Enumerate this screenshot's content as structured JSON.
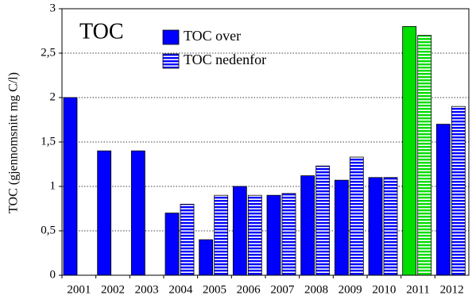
{
  "chart_data": {
    "type": "bar",
    "title": "TOC",
    "y_label": "TOC (gjennomsnitt mg C/l)",
    "categories": [
      "2001",
      "2002",
      "2003",
      "2004",
      "2005",
      "2006",
      "2007",
      "2008",
      "2009",
      "2010",
      "2011",
      "2012"
    ],
    "series": [
      {
        "name": "TOC over",
        "color": "#0000ff",
        "colors": [
          "#0000ff",
          "#0000ff",
          "#0000ff",
          "#0000ff",
          "#0000ff",
          "#0000ff",
          "#0000ff",
          "#0000ff",
          "#0000ff",
          "#0000ff",
          "#00dd00",
          "#0000ff"
        ],
        "pattern": "solid",
        "values": [
          2.0,
          1.4,
          1.4,
          0.7,
          0.4,
          1.0,
          0.9,
          1.12,
          1.07,
          1.1,
          2.8,
          1.7
        ]
      },
      {
        "name": "TOC nedenfor",
        "color": "#0000ff",
        "colors": [
          "#0000ff",
          "#0000ff",
          "#0000ff",
          "#0000ff",
          "#0000ff",
          "#0000ff",
          "#0000ff",
          "#0000ff",
          "#0000ff",
          "#0000ff",
          "#00dd00",
          "#0000ff"
        ],
        "pattern": "stripes",
        "values": [
          null,
          null,
          null,
          0.8,
          0.9,
          0.9,
          0.92,
          1.23,
          1.33,
          1.1,
          2.7,
          1.9
        ]
      }
    ],
    "ylim": [
      0,
      3
    ],
    "yticks": [
      0,
      {
        "value": 0.5,
        "label": "0,5"
      },
      1,
      {
        "value": 1.5,
        "label": "1,5"
      },
      2,
      {
        "value": 2.5,
        "label": "2,5"
      },
      3
    ],
    "grid": true
  }
}
